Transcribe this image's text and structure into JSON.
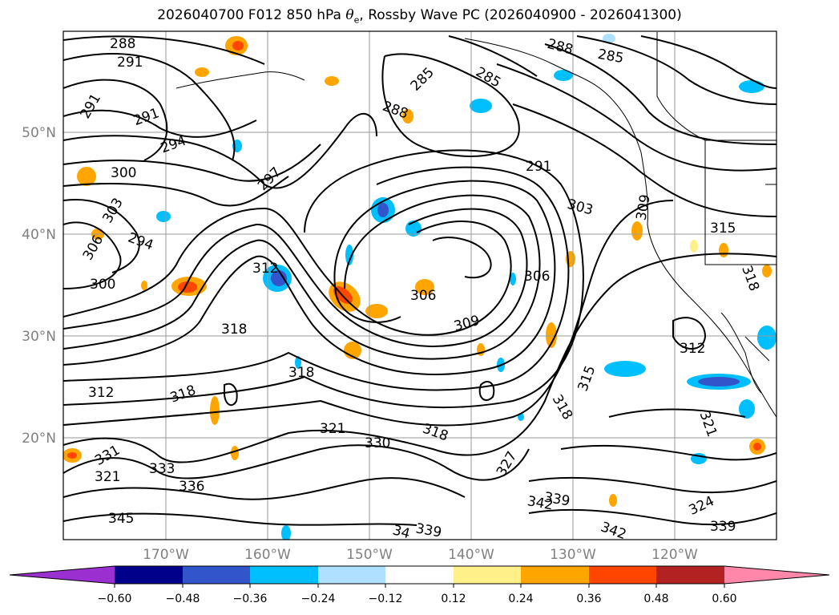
{
  "title": {
    "prefix": "2026040700 F012 850 hPa ",
    "var_symbol": "θ",
    "var_subscript": "e",
    "suffix": ", Rossby Wave PC (2026040900 - 2026041300)"
  },
  "map": {
    "lat_labels": [
      "50°N",
      "40°N",
      "30°N",
      "20°N"
    ],
    "lon_labels": [
      "170°W",
      "160°W",
      "150°W",
      "140°W",
      "130°W",
      "120°W"
    ],
    "contour_labels": [
      "288",
      "291",
      "291",
      "291",
      "294",
      "300",
      "303",
      "306",
      "294",
      "300",
      "297",
      "285",
      "288",
      "285",
      "288",
      "285",
      "291",
      "303",
      "309",
      "315",
      "318",
      "306",
      "306",
      "309",
      "318",
      "312",
      "312",
      "318",
      "321",
      "330",
      "318",
      "331",
      "321",
      "333",
      "336",
      "345",
      "327",
      "315",
      "318",
      "339",
      "342",
      "342",
      "339",
      "339",
      "324",
      "321",
      "312",
      "318",
      "34"
    ]
  },
  "colorbar": {
    "ticks": [
      "−0.60",
      "−0.48",
      "−0.36",
      "−0.24",
      "−0.12",
      "0.12",
      "0.24",
      "0.36",
      "0.48",
      "0.60"
    ],
    "colors": [
      "#9b30d0",
      "#00008b",
      "#3355cc",
      "#00bfff",
      "#b0e0ff",
      "#ffffff",
      "#fff08a",
      "#ffa500",
      "#ff4500",
      "#b22222",
      "#ff88aa"
    ]
  }
}
